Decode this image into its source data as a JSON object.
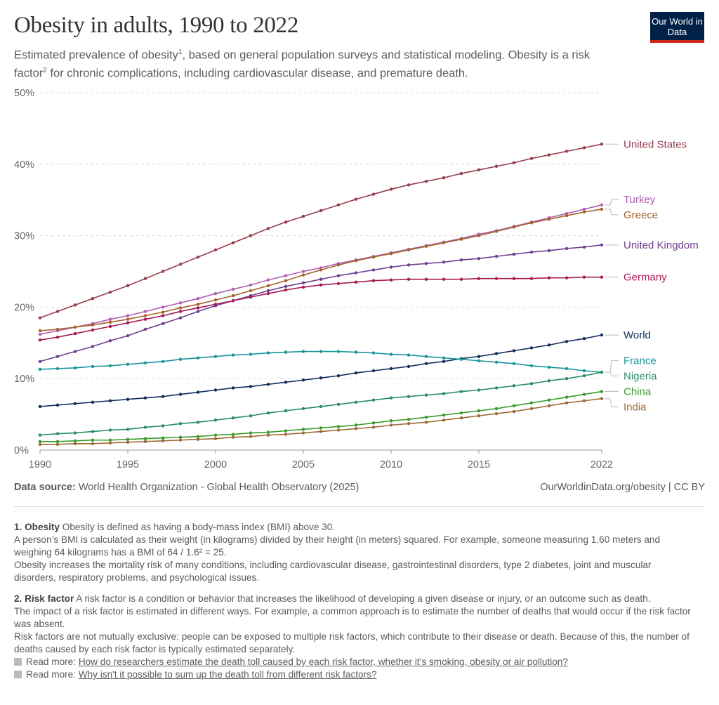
{
  "header": {
    "title": "Obesity in adults, 1990 to 2022",
    "subtitle_parts": [
      "Estimated prevalence of obesity",
      "1",
      ", based on general population surveys and statistical modeling. Obesity is a risk factor",
      "2",
      " for chronic complications, including cardiovascular disease, and premature death."
    ],
    "logo": "Our World in Data"
  },
  "chart_data": {
    "type": "line",
    "x": [
      1990,
      1991,
      1992,
      1993,
      1994,
      1995,
      1996,
      1997,
      1998,
      1999,
      2000,
      2001,
      2002,
      2003,
      2004,
      2005,
      2006,
      2007,
      2008,
      2009,
      2010,
      2011,
      2012,
      2013,
      2014,
      2015,
      2016,
      2017,
      2018,
      2019,
      2020,
      2021,
      2022
    ],
    "xticks": [
      "1990",
      "1995",
      "2000",
      "2005",
      "2010",
      "2015",
      "2022"
    ],
    "xtick_values": [
      1990,
      1995,
      2000,
      2005,
      2010,
      2015,
      2022
    ],
    "yticks": [
      "0%",
      "10%",
      "20%",
      "30%",
      "40%",
      "50%"
    ],
    "ytick_values": [
      0,
      10,
      20,
      30,
      40,
      50
    ],
    "ylim": [
      0,
      50
    ],
    "xlim": [
      1990,
      2022
    ],
    "grid": "horizontal dashed",
    "legend": "line-end labels right",
    "series": [
      {
        "name": "United States",
        "color": "#963c4b",
        "values": [
          18.5,
          19.4,
          20.3,
          21.2,
          22.1,
          23.0,
          24.0,
          25.0,
          26.0,
          27.0,
          28.0,
          29.0,
          30.0,
          31.0,
          31.9,
          32.7,
          33.5,
          34.3,
          35.1,
          35.8,
          36.5,
          37.1,
          37.6,
          38.1,
          38.7,
          39.2,
          39.7,
          40.2,
          40.8,
          41.3,
          41.8,
          42.3,
          42.8
        ]
      },
      {
        "name": "Turkey",
        "color": "#b060b0",
        "values": [
          16.2,
          16.7,
          17.2,
          17.7,
          18.3,
          18.8,
          19.4,
          20.0,
          20.6,
          21.2,
          21.9,
          22.5,
          23.1,
          23.8,
          24.4,
          25.0,
          25.5,
          26.1,
          26.6,
          27.1,
          27.6,
          28.1,
          28.6,
          29.1,
          29.6,
          30.2,
          30.7,
          31.3,
          31.9,
          32.5,
          33.1,
          33.7,
          34.3
        ]
      },
      {
        "name": "Greece",
        "color": "#a2622c",
        "values": [
          16.7,
          16.9,
          17.2,
          17.5,
          17.9,
          18.3,
          18.8,
          19.3,
          19.9,
          20.4,
          21.0,
          21.6,
          22.3,
          23.0,
          23.7,
          24.5,
          25.2,
          25.9,
          26.5,
          27.0,
          27.5,
          28.0,
          28.5,
          29.0,
          29.5,
          30.0,
          30.6,
          31.2,
          31.8,
          32.3,
          32.8,
          33.3,
          33.7
        ]
      },
      {
        "name": "United Kingdom",
        "color": "#6d3e91",
        "values": [
          12.4,
          13.1,
          13.8,
          14.5,
          15.3,
          16.0,
          16.9,
          17.7,
          18.5,
          19.4,
          20.2,
          20.9,
          21.6,
          22.3,
          22.9,
          23.4,
          23.9,
          24.4,
          24.8,
          25.2,
          25.6,
          25.9,
          26.1,
          26.3,
          26.6,
          26.8,
          27.1,
          27.4,
          27.7,
          27.9,
          28.2,
          28.4,
          28.7
        ]
      },
      {
        "name": "Germany",
        "color": "#a51955",
        "values": [
          15.4,
          15.8,
          16.3,
          16.8,
          17.3,
          17.8,
          18.3,
          18.8,
          19.4,
          19.9,
          20.4,
          20.9,
          21.4,
          21.9,
          22.4,
          22.8,
          23.1,
          23.3,
          23.5,
          23.7,
          23.8,
          23.9,
          23.9,
          23.9,
          23.9,
          24.0,
          24.0,
          24.0,
          24.0,
          24.1,
          24.1,
          24.2,
          24.2
        ]
      },
      {
        "name": "World",
        "color": "#0f2e5a",
        "values": [
          6.1,
          6.3,
          6.5,
          6.7,
          6.9,
          7.1,
          7.3,
          7.5,
          7.8,
          8.1,
          8.4,
          8.7,
          8.9,
          9.2,
          9.5,
          9.8,
          10.1,
          10.4,
          10.8,
          11.1,
          11.4,
          11.7,
          12.1,
          12.4,
          12.8,
          13.1,
          13.5,
          13.9,
          14.3,
          14.7,
          15.2,
          15.6,
          16.1
        ]
      },
      {
        "name": "France",
        "color": "#18959b",
        "values": [
          11.3,
          11.4,
          11.5,
          11.7,
          11.8,
          12.0,
          12.2,
          12.4,
          12.7,
          12.9,
          13.1,
          13.3,
          13.4,
          13.6,
          13.7,
          13.8,
          13.8,
          13.8,
          13.7,
          13.6,
          13.4,
          13.3,
          13.1,
          12.9,
          12.7,
          12.5,
          12.3,
          12.1,
          11.8,
          11.6,
          11.4,
          11.1,
          10.9
        ]
      },
      {
        "name": "Nigeria",
        "color": "#2b8a67",
        "values": [
          2.1,
          2.3,
          2.4,
          2.6,
          2.8,
          2.9,
          3.2,
          3.4,
          3.7,
          3.9,
          4.2,
          4.5,
          4.8,
          5.2,
          5.5,
          5.8,
          6.1,
          6.4,
          6.7,
          7.0,
          7.3,
          7.5,
          7.7,
          7.9,
          8.2,
          8.4,
          8.7,
          9.0,
          9.3,
          9.7,
          10.0,
          10.4,
          10.9
        ]
      },
      {
        "name": "China",
        "color": "#3a9a2c",
        "values": [
          1.2,
          1.2,
          1.3,
          1.4,
          1.4,
          1.5,
          1.6,
          1.7,
          1.8,
          1.9,
          2.1,
          2.2,
          2.4,
          2.5,
          2.7,
          2.9,
          3.1,
          3.3,
          3.5,
          3.8,
          4.1,
          4.3,
          4.6,
          4.9,
          5.2,
          5.5,
          5.8,
          6.2,
          6.6,
          7.0,
          7.4,
          7.8,
          8.2
        ]
      },
      {
        "name": "India",
        "color": "#9d6a37",
        "values": [
          0.8,
          0.8,
          0.9,
          0.9,
          1.0,
          1.1,
          1.2,
          1.3,
          1.4,
          1.5,
          1.6,
          1.8,
          1.9,
          2.1,
          2.2,
          2.4,
          2.6,
          2.8,
          3.0,
          3.2,
          3.5,
          3.7,
          3.9,
          4.2,
          4.5,
          4.8,
          5.1,
          5.4,
          5.8,
          6.2,
          6.6,
          6.9,
          7.2
        ]
      }
    ]
  },
  "footer": {
    "source_label": "Data source:",
    "source": "World Health Organization - Global Health Observatory (2025)",
    "license": "OurWorldinData.org/obesity | CC BY"
  },
  "notes": {
    "n1_label": "1. Obesity",
    "n1_lead": "Obesity is defined as having a body-mass index (BMI) above 30.",
    "n1_p2": "A person’s BMI is calculated as their weight (in kilograms) divided by their height (in meters) squared. For example, someone measuring 1.60 meters and weighing 64 kilograms has a BMI of 64 / 1.6² = 25.",
    "n1_p3": "Obesity increases the mortality risk of many conditions, including cardiovascular disease, gastrointestinal disorders, type 2 diabetes, joint and muscular disorders, respiratory problems, and psychological issues.",
    "n2_label": "2. Risk factor",
    "n2_lead": "A risk factor is a condition or behavior that increases the likelihood of developing a given disease or injury, or an outcome such as death.",
    "n2_p2": "The impact of a risk factor is estimated in different ways. For example, a common approach is to estimate the number of deaths that would occur if the risk factor was absent.",
    "n2_p3": "Risk factors are not mutually exclusive: people can be exposed to multiple risk factors, which contribute to their disease or death. Because of this, the number of deaths caused by each risk factor is typically estimated separately.",
    "read_more_label": "Read more:",
    "link1": "How do researchers estimate the death toll caused by each risk factor, whether it’s smoking, obesity or air pollution?",
    "link2": "Why isn't it possible to sum up the death toll from different risk factors?"
  }
}
